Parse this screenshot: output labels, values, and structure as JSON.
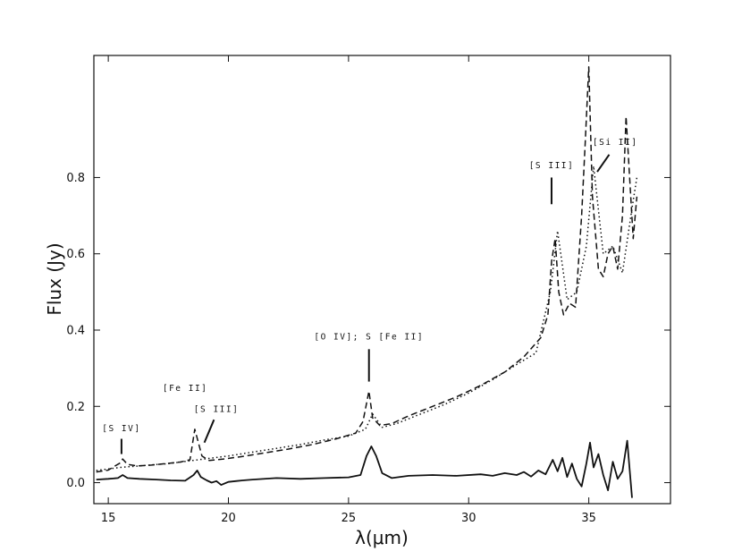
{
  "chart_data": {
    "type": "line",
    "title": "",
    "xlabel": "λ(μm)",
    "ylabel": "Flux (Jy)",
    "xlim": [
      14.4,
      38.4
    ],
    "ylim": [
      -0.055,
      1.12
    ],
    "xticks": [
      15,
      20,
      25,
      30,
      35
    ],
    "yticks": [
      0.0,
      0.2,
      0.4,
      0.6,
      0.8
    ],
    "ytick_labels": [
      "0.0",
      "0.2",
      "0.4",
      "0.6",
      "0.8"
    ],
    "grid": false,
    "legend": "none",
    "series": [
      {
        "style": "dashed",
        "x": [
          14.5,
          15.0,
          15.5,
          15.6,
          15.8,
          16.2,
          16.8,
          17.4,
          18.0,
          18.4,
          18.6,
          18.9,
          19.2,
          19.8,
          20.5,
          21.5,
          22.5,
          23.5,
          24.5,
          25.3,
          25.6,
          25.85,
          26.0,
          26.3,
          26.8,
          27.5,
          28.5,
          29.5,
          30.5,
          31.5,
          32.3,
          33.0,
          33.3,
          33.45,
          33.6,
          33.75,
          33.95,
          34.2,
          34.45,
          34.7,
          34.85,
          35.0,
          35.15,
          35.4,
          35.6,
          35.8,
          36.0,
          36.2,
          36.4,
          36.55,
          36.7,
          36.85,
          37.0
        ],
        "y": [
          0.028,
          0.033,
          0.052,
          0.062,
          0.048,
          0.044,
          0.046,
          0.05,
          0.054,
          0.06,
          0.14,
          0.07,
          0.058,
          0.062,
          0.068,
          0.078,
          0.088,
          0.1,
          0.115,
          0.13,
          0.16,
          0.24,
          0.17,
          0.15,
          0.155,
          0.175,
          0.2,
          0.225,
          0.255,
          0.29,
          0.33,
          0.38,
          0.44,
          0.58,
          0.64,
          0.5,
          0.44,
          0.47,
          0.46,
          0.7,
          0.89,
          1.09,
          0.75,
          0.56,
          0.54,
          0.6,
          0.62,
          0.56,
          0.7,
          0.96,
          0.8,
          0.64,
          0.75
        ]
      },
      {
        "style": "dotted",
        "x": [
          14.5,
          15.5,
          16.5,
          17.5,
          18.5,
          19.0,
          20.0,
          21.0,
          22.0,
          23.0,
          24.0,
          25.0,
          25.7,
          26.0,
          26.4,
          27.0,
          28.0,
          29.0,
          30.0,
          31.0,
          32.0,
          32.8,
          33.4,
          33.7,
          34.1,
          34.5,
          34.9,
          35.2,
          35.6,
          36.0,
          36.4,
          36.8,
          37.0
        ],
        "y": [
          0.032,
          0.04,
          0.045,
          0.05,
          0.058,
          0.062,
          0.07,
          0.08,
          0.09,
          0.1,
          0.112,
          0.122,
          0.14,
          0.18,
          0.145,
          0.155,
          0.18,
          0.205,
          0.235,
          0.27,
          0.31,
          0.34,
          0.5,
          0.66,
          0.48,
          0.5,
          0.62,
          0.83,
          0.6,
          0.62,
          0.55,
          0.72,
          0.8
        ]
      },
      {
        "style": "solid",
        "x": [
          14.5,
          15.0,
          15.4,
          15.6,
          15.8,
          16.3,
          17.0,
          17.6,
          18.2,
          18.55,
          18.7,
          18.85,
          19.1,
          19.3,
          19.5,
          19.7,
          20.0,
          20.3,
          20.6,
          21.0,
          22.0,
          23.0,
          24.0,
          25.0,
          25.5,
          25.75,
          25.95,
          26.15,
          26.4,
          26.8,
          27.5,
          28.5,
          29.5,
          30.5,
          31.0,
          31.5,
          32.0,
          32.3,
          32.6,
          32.9,
          33.2,
          33.5,
          33.7,
          33.9,
          34.1,
          34.3,
          34.5,
          34.7,
          34.9,
          35.05,
          35.2,
          35.4,
          35.6,
          35.8,
          36.0,
          36.2,
          36.4,
          36.6,
          36.8
        ],
        "y": [
          0.008,
          0.01,
          0.012,
          0.02,
          0.012,
          0.01,
          0.008,
          0.006,
          0.005,
          0.02,
          0.032,
          0.015,
          0.006,
          0.0,
          0.004,
          -0.006,
          0.002,
          0.004,
          0.006,
          0.008,
          0.012,
          0.01,
          0.012,
          0.014,
          0.02,
          0.07,
          0.095,
          0.07,
          0.025,
          0.012,
          0.018,
          0.02,
          0.018,
          0.022,
          0.018,
          0.025,
          0.02,
          0.028,
          0.016,
          0.032,
          0.022,
          0.06,
          0.03,
          0.065,
          0.015,
          0.05,
          0.01,
          -0.01,
          0.05,
          0.105,
          0.04,
          0.075,
          0.02,
          -0.02,
          0.055,
          0.01,
          0.03,
          0.11,
          -0.04
        ]
      }
    ],
    "annotations": [
      {
        "text": "[S IV]",
        "tx": 15.55,
        "ty": 0.135,
        "lx": [
          15.55,
          15.55
        ],
        "ly": [
          0.115,
          0.075
        ]
      },
      {
        "text": "[Fe II]",
        "tx": 18.2,
        "ty": 0.24,
        "lx": [],
        "ly": []
      },
      {
        "text": "[S III]",
        "tx": 19.5,
        "ty": 0.185,
        "lx": [
          19.4,
          19.0
        ],
        "ly": [
          0.165,
          0.105
        ]
      },
      {
        "text": "[O IV]; S  [Fe II]",
        "tx": 25.85,
        "ty": 0.375,
        "lx": [
          25.85,
          25.85
        ],
        "ly": [
          0.35,
          0.265
        ]
      },
      {
        "text": "[S III]",
        "tx": 33.45,
        "ty": 0.825,
        "lx": [
          33.45,
          33.45
        ],
        "ly": [
          0.8,
          0.73
        ]
      },
      {
        "text": "[Si II]",
        "tx": 36.1,
        "ty": 0.885,
        "lx": [
          35.85,
          35.35
        ],
        "ly": [
          0.86,
          0.815
        ]
      }
    ]
  }
}
